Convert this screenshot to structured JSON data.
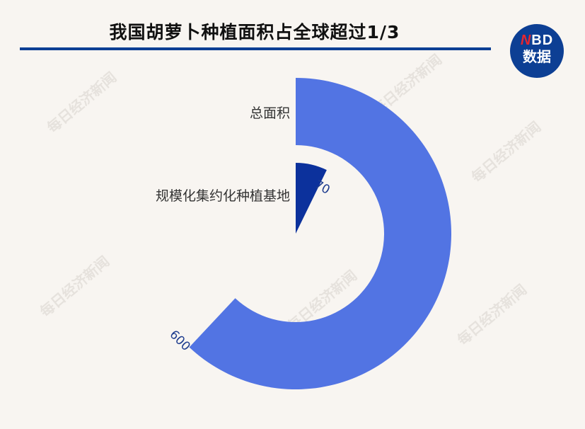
{
  "title": "我国胡萝卜种植面积占全球超过1/3",
  "logo": {
    "line1_n": "N",
    "line1_rest": "BD",
    "line2": "数据"
  },
  "watermark": "每日经济新闻",
  "colors": {
    "outer_bar": "#5274e3",
    "inner_bar": "#0c319c",
    "rule": "#0d3f94",
    "background": "#f8f5f1"
  },
  "chart_data": {
    "type": "radial-bar",
    "categories": [
      "总面积",
      "规模化集约化种植基地"
    ],
    "values": [
      600,
      70
    ],
    "data_labels": [
      "600",
      "70"
    ],
    "colors": [
      "#5274e3",
      "#0c319c"
    ]
  }
}
